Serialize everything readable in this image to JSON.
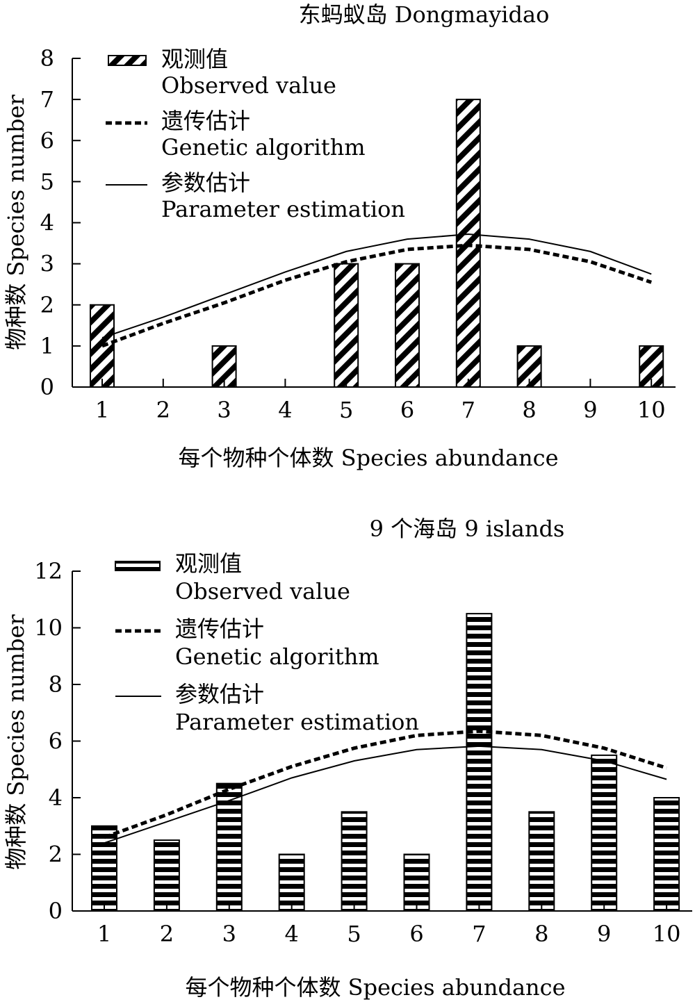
{
  "chart_data": [
    {
      "type": "bar",
      "title": "东蚂蚁岛 Dongmayidao",
      "xlabel": "每个物种个体数 Species abundance",
      "ylabel": "物种数 Species number",
      "categories": [
        "1",
        "2",
        "3",
        "4",
        "5",
        "6",
        "7",
        "8",
        "9",
        "10"
      ],
      "ylim": [
        0,
        8
      ],
      "yticks": [
        "0",
        "1",
        "2",
        "3",
        "4",
        "5",
        "6",
        "7",
        "8"
      ],
      "series": [
        {
          "name": "观测值 Observed value",
          "kind": "bar",
          "values": [
            2,
            0,
            1,
            0,
            3,
            3,
            7,
            1,
            0,
            1
          ]
        },
        {
          "name": "遗传估计 Genetic algorithm",
          "kind": "line-dashed",
          "values": [
            1.0,
            1.55,
            2.05,
            2.6,
            3.05,
            3.35,
            3.45,
            3.35,
            3.05,
            2.55
          ]
        },
        {
          "name": "参数估计 Parameter estimation",
          "kind": "line-solid",
          "values": [
            1.2,
            1.7,
            2.25,
            2.8,
            3.3,
            3.6,
            3.72,
            3.6,
            3.3,
            2.75
          ]
        }
      ],
      "legend": [
        {
          "zh": "观测值",
          "en": "Observed value"
        },
        {
          "zh": "遗传估计",
          "en": "Genetic algorithm"
        },
        {
          "zh": "参数估计",
          "en": "Parameter estimation"
        }
      ],
      "bar_pattern": "diagonal"
    },
    {
      "type": "bar",
      "title": "9 个海岛 9 islands",
      "xlabel": "每个物种个体数 Species abundance",
      "ylabel": "物种数 Species number",
      "categories": [
        "1",
        "2",
        "3",
        "4",
        "5",
        "6",
        "7",
        "8",
        "9",
        "10"
      ],
      "ylim": [
        0,
        12
      ],
      "yticks": [
        "0",
        "2",
        "4",
        "6",
        "8",
        "10",
        "12"
      ],
      "series": [
        {
          "name": "观测值 Observed value",
          "kind": "bar",
          "values": [
            3,
            2.5,
            4.5,
            2,
            3.5,
            2,
            10.5,
            3.5,
            5.5,
            4
          ]
        },
        {
          "name": "遗传估计 Genetic algorithm",
          "kind": "line-dashed",
          "values": [
            2.6,
            3.4,
            4.3,
            5.1,
            5.75,
            6.2,
            6.35,
            6.2,
            5.75,
            5.05
          ]
        },
        {
          "name": "参数估计 Parameter estimation",
          "kind": "line-solid",
          "values": [
            2.4,
            3.15,
            3.9,
            4.7,
            5.3,
            5.7,
            5.82,
            5.7,
            5.3,
            4.65
          ]
        }
      ],
      "legend": [
        {
          "zh": "观测值",
          "en": "Observed value"
        },
        {
          "zh": "遗传估计",
          "en": "Genetic algorithm"
        },
        {
          "zh": "参数估计",
          "en": "Parameter estimation"
        }
      ],
      "bar_pattern": "horizontal"
    }
  ]
}
